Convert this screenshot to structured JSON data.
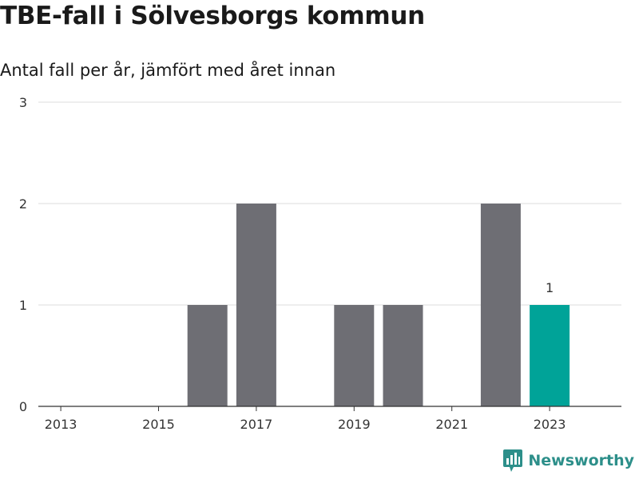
{
  "title": "TBE-fall i Sölvesborgs kommun",
  "subtitle": "Antal fall per år, jämfört med året innan",
  "brand": "Newsworthy",
  "colors": {
    "bar": "#6e6e74",
    "highlight": "#00a398",
    "grid": "#dcdcdc",
    "axis": "#333333",
    "brand": "#2d8f8a"
  },
  "chart_data": {
    "type": "bar",
    "categories": [
      "2013",
      "2014",
      "2015",
      "2016",
      "2017",
      "2018",
      "2019",
      "2020",
      "2021",
      "2022",
      "2023"
    ],
    "values": [
      0,
      0,
      0,
      1,
      2,
      0,
      1,
      1,
      0,
      2,
      1
    ],
    "x_tick_labels": [
      "2013",
      "2015",
      "2017",
      "2019",
      "2021",
      "2023"
    ],
    "ylim": [
      0,
      3
    ],
    "y_ticks": [
      0,
      1,
      2,
      3
    ],
    "highlight_category": "2023",
    "data_labels": [
      {
        "category": "2023",
        "text": "1"
      }
    ],
    "grid": true,
    "xlabel": "",
    "ylabel": ""
  }
}
